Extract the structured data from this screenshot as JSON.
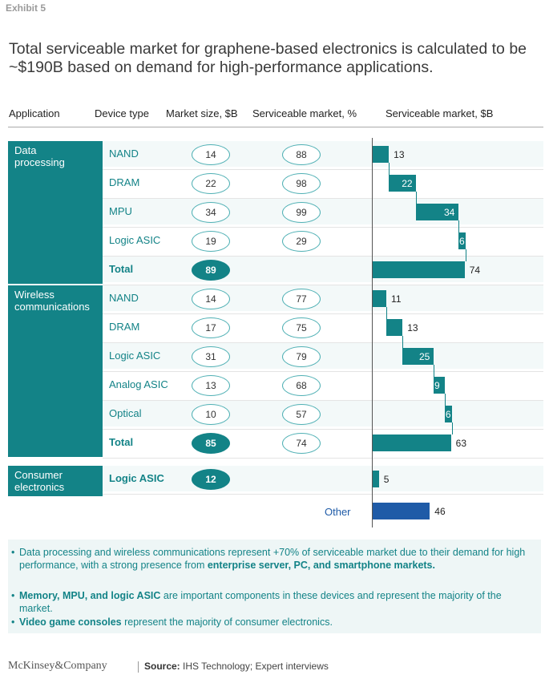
{
  "exhibit": "Exhibit 5",
  "title": "Total serviceable market for graphene-based electronics is calculated to be ~$190B based on demand for high-performance applications.",
  "headers": {
    "application": "Application",
    "device": "Device type",
    "market": "Market size, $B",
    "pct": "Serviceable market, %",
    "sm": "Serviceable market, $B"
  },
  "chart_data": {
    "type": "table",
    "groups": [
      {
        "name": "Data processing",
        "rows": [
          {
            "device": "NAND",
            "market": "14",
            "pct": "88",
            "sm": 13
          },
          {
            "device": "DRAM",
            "market": "22",
            "pct": "98",
            "sm": 22
          },
          {
            "device": "MPU",
            "market": "34",
            "pct": "99",
            "sm": 34
          },
          {
            "device": "Logic ASIC",
            "market": "19",
            "pct": "29",
            "sm": 6
          },
          {
            "device": "Total",
            "market": "89",
            "pct": "",
            "sm": 74,
            "total": true
          }
        ]
      },
      {
        "name": "Wireless communications",
        "rows": [
          {
            "device": "NAND",
            "market": "14",
            "pct": "77",
            "sm": 11
          },
          {
            "device": "DRAM",
            "market": "17",
            "pct": "75",
            "sm": 13
          },
          {
            "device": "Logic ASIC",
            "market": "31",
            "pct": "79",
            "sm": 25
          },
          {
            "device": "Analog ASIC",
            "market": "13",
            "pct": "68",
            "sm": 9
          },
          {
            "device": "Optical",
            "market": "10",
            "pct": "57",
            "sm": 6
          },
          {
            "device": "Total",
            "market": "85",
            "pct": "74",
            "sm": 63,
            "total": true
          }
        ]
      },
      {
        "name": "Consumer electronics",
        "rows": [
          {
            "device": "Logic ASIC",
            "market": "12",
            "pct": "",
            "sm": 5,
            "filled_market": true
          }
        ]
      }
    ],
    "other": {
      "label": "Other",
      "sm": 46
    },
    "colors": {
      "teal": "#138387",
      "other": "#1f5ba7"
    }
  },
  "notes": [
    {
      "parts": [
        {
          "t": "Data processing and wireless communications represent +70% of serviceable market due to their demand for high performance, with a strong presence from ",
          "b": false
        },
        {
          "t": "enterprise server, PC, and smartphone markets.",
          "b": true
        }
      ]
    },
    {
      "parts": [
        {
          "t": "Memory, MPU, and logic ASIC",
          "b": true
        },
        {
          "t": " are important components in these devices and represent the majority of the market.",
          "b": false
        }
      ]
    },
    {
      "parts": [
        {
          "t": "Video game consoles",
          "b": true
        },
        {
          "t": " represent the majority of consumer electronics.",
          "b": false
        }
      ]
    }
  ],
  "footer": {
    "logo": "McKinsey&Company",
    "source_label": "Source:",
    "source_text": " IHS Technology; Expert interviews"
  }
}
